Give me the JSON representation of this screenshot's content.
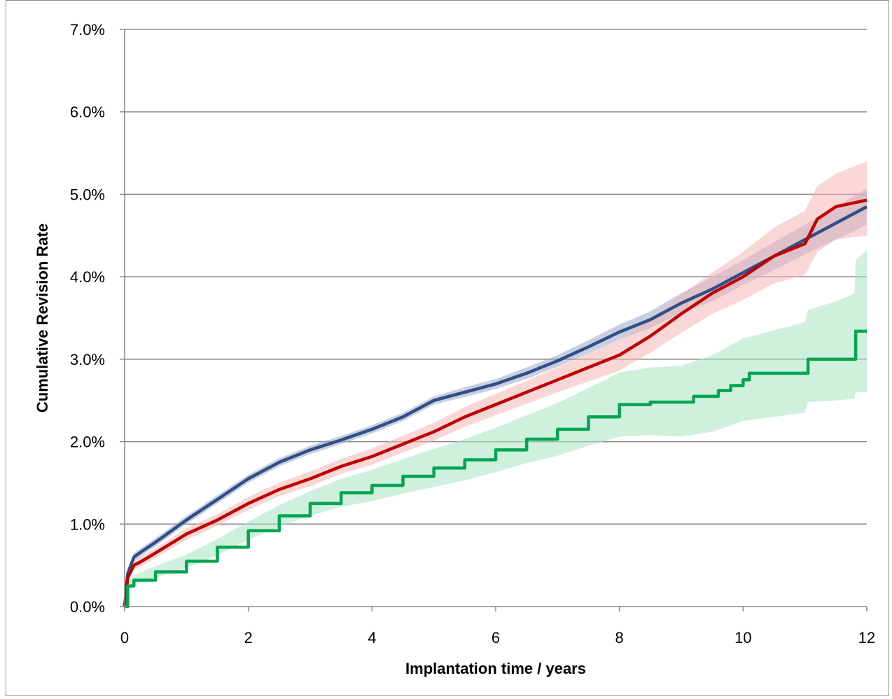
{
  "chart_data": {
    "type": "line",
    "title": "",
    "xlabel": "Implantation time  / years",
    "ylabel": "Cumulative Revision Rate",
    "xlim": [
      0,
      12
    ],
    "ylim": [
      0,
      7
    ],
    "x_ticks": [
      "0",
      "2",
      "4",
      "6",
      "8",
      "10",
      "12"
    ],
    "y_ticks": [
      "0.0%",
      "1.0%",
      "2.0%",
      "3.0%",
      "4.0%",
      "5.0%",
      "6.0%",
      "7.0%"
    ],
    "grid": true,
    "legend": "none",
    "series": [
      {
        "color": "#2e4f87",
        "band_color": "#9aa8c8",
        "points": [
          [
            0,
            0
          ],
          [
            0.05,
            0.4
          ],
          [
            0.15,
            0.6
          ],
          [
            0.3,
            0.68
          ],
          [
            0.5,
            0.78
          ],
          [
            1,
            1.05
          ],
          [
            1.5,
            1.3
          ],
          [
            2,
            1.55
          ],
          [
            2.5,
            1.75
          ],
          [
            3,
            1.9
          ],
          [
            3.5,
            2.02
          ],
          [
            4,
            2.15
          ],
          [
            4.5,
            2.3
          ],
          [
            5,
            2.5
          ],
          [
            5.5,
            2.6
          ],
          [
            6,
            2.7
          ],
          [
            6.5,
            2.83
          ],
          [
            7,
            2.98
          ],
          [
            7.5,
            3.15
          ],
          [
            8,
            3.33
          ],
          [
            8.5,
            3.48
          ],
          [
            9,
            3.68
          ],
          [
            9.5,
            3.85
          ],
          [
            10,
            4.05
          ],
          [
            10.5,
            4.25
          ],
          [
            11,
            4.45
          ],
          [
            11.5,
            4.65
          ],
          [
            12,
            4.85
          ]
        ],
        "ci_upper": [
          [
            0,
            0
          ],
          [
            0.05,
            0.45
          ],
          [
            0.15,
            0.65
          ],
          [
            0.3,
            0.73
          ],
          [
            0.5,
            0.83
          ],
          [
            1,
            1.1
          ],
          [
            1.5,
            1.35
          ],
          [
            2,
            1.6
          ],
          [
            2.5,
            1.8
          ],
          [
            3,
            1.95
          ],
          [
            3.5,
            2.07
          ],
          [
            4,
            2.2
          ],
          [
            4.5,
            2.35
          ],
          [
            5,
            2.55
          ],
          [
            5.5,
            2.66
          ],
          [
            6,
            2.76
          ],
          [
            6.5,
            2.9
          ],
          [
            7,
            3.05
          ],
          [
            7.5,
            3.23
          ],
          [
            8,
            3.42
          ],
          [
            8.5,
            3.58
          ],
          [
            9,
            3.8
          ],
          [
            9.5,
            4.0
          ],
          [
            10,
            4.2
          ],
          [
            10.5,
            4.42
          ],
          [
            11,
            4.63
          ],
          [
            11.5,
            4.85
          ],
          [
            12,
            5.07
          ]
        ],
        "ci_lower": [
          [
            0,
            0
          ],
          [
            0.05,
            0.35
          ],
          [
            0.15,
            0.55
          ],
          [
            0.3,
            0.63
          ],
          [
            0.5,
            0.73
          ],
          [
            1,
            1.0
          ],
          [
            1.5,
            1.25
          ],
          [
            2,
            1.5
          ],
          [
            2.5,
            1.7
          ],
          [
            3,
            1.85
          ],
          [
            3.5,
            1.97
          ],
          [
            4,
            2.1
          ],
          [
            4.5,
            2.25
          ],
          [
            5,
            2.45
          ],
          [
            5.5,
            2.54
          ],
          [
            6,
            2.64
          ],
          [
            6.5,
            2.76
          ],
          [
            7,
            2.91
          ],
          [
            7.5,
            3.07
          ],
          [
            8,
            3.24
          ],
          [
            8.5,
            3.38
          ],
          [
            9,
            3.56
          ],
          [
            9.5,
            3.7
          ],
          [
            10,
            3.9
          ],
          [
            10.5,
            4.08
          ],
          [
            11,
            4.27
          ],
          [
            11.5,
            4.45
          ],
          [
            12,
            4.63
          ]
        ]
      },
      {
        "color": "#c00000",
        "band_color": "#f4b6b6",
        "points": [
          [
            0,
            0
          ],
          [
            0.05,
            0.35
          ],
          [
            0.15,
            0.5
          ],
          [
            0.3,
            0.56
          ],
          [
            0.5,
            0.65
          ],
          [
            1,
            0.88
          ],
          [
            1.5,
            1.05
          ],
          [
            2,
            1.25
          ],
          [
            2.5,
            1.42
          ],
          [
            3,
            1.55
          ],
          [
            3.5,
            1.7
          ],
          [
            4,
            1.82
          ],
          [
            4.5,
            1.97
          ],
          [
            5,
            2.12
          ],
          [
            5.5,
            2.3
          ],
          [
            6,
            2.45
          ],
          [
            6.5,
            2.6
          ],
          [
            7,
            2.75
          ],
          [
            7.5,
            2.9
          ],
          [
            8,
            3.05
          ],
          [
            8.5,
            3.28
          ],
          [
            9,
            3.55
          ],
          [
            9.5,
            3.8
          ],
          [
            10,
            4.0
          ],
          [
            10.5,
            4.25
          ],
          [
            11,
            4.4
          ],
          [
            11.2,
            4.7
          ],
          [
            11.5,
            4.85
          ],
          [
            12,
            4.93
          ]
        ],
        "ci_upper": [
          [
            0,
            0
          ],
          [
            0.05,
            0.4
          ],
          [
            0.15,
            0.56
          ],
          [
            0.3,
            0.62
          ],
          [
            0.5,
            0.71
          ],
          [
            1,
            0.95
          ],
          [
            1.5,
            1.12
          ],
          [
            2,
            1.33
          ],
          [
            2.5,
            1.5
          ],
          [
            3,
            1.64
          ],
          [
            3.5,
            1.79
          ],
          [
            4,
            1.92
          ],
          [
            4.5,
            2.07
          ],
          [
            5,
            2.23
          ],
          [
            5.5,
            2.42
          ],
          [
            6,
            2.58
          ],
          [
            6.5,
            2.74
          ],
          [
            7,
            2.9
          ],
          [
            7.5,
            3.07
          ],
          [
            8,
            3.24
          ],
          [
            8.5,
            3.48
          ],
          [
            9,
            3.78
          ],
          [
            9.5,
            4.05
          ],
          [
            10,
            4.3
          ],
          [
            10.5,
            4.6
          ],
          [
            11,
            4.8
          ],
          [
            11.2,
            5.1
          ],
          [
            11.5,
            5.25
          ],
          [
            12,
            5.4
          ]
        ],
        "ci_lower": [
          [
            0,
            0
          ],
          [
            0.05,
            0.3
          ],
          [
            0.15,
            0.44
          ],
          [
            0.3,
            0.5
          ],
          [
            0.5,
            0.59
          ],
          [
            1,
            0.81
          ],
          [
            1.5,
            0.98
          ],
          [
            2,
            1.17
          ],
          [
            2.5,
            1.34
          ],
          [
            3,
            1.46
          ],
          [
            3.5,
            1.61
          ],
          [
            4,
            1.72
          ],
          [
            4.5,
            1.87
          ],
          [
            5,
            2.01
          ],
          [
            5.5,
            2.18
          ],
          [
            6,
            2.32
          ],
          [
            6.5,
            2.46
          ],
          [
            7,
            2.6
          ],
          [
            7.5,
            2.73
          ],
          [
            8,
            2.86
          ],
          [
            8.5,
            3.08
          ],
          [
            9,
            3.32
          ],
          [
            9.5,
            3.55
          ],
          [
            10,
            3.72
          ],
          [
            10.5,
            3.92
          ],
          [
            11,
            4.02
          ],
          [
            11.2,
            4.3
          ],
          [
            11.5,
            4.45
          ],
          [
            12,
            4.5
          ]
        ]
      },
      {
        "color": "#00a550",
        "band_color": "#a9e4c2",
        "steps": true,
        "points": [
          [
            0,
            0
          ],
          [
            0.05,
            0.25
          ],
          [
            0.15,
            0.32
          ],
          [
            0.5,
            0.42
          ],
          [
            1,
            0.55
          ],
          [
            1.5,
            0.72
          ],
          [
            2,
            0.92
          ],
          [
            2.5,
            1.1
          ],
          [
            3,
            1.25
          ],
          [
            3.5,
            1.38
          ],
          [
            4,
            1.47
          ],
          [
            4.5,
            1.58
          ],
          [
            5,
            1.68
          ],
          [
            5.5,
            1.78
          ],
          [
            6,
            1.9
          ],
          [
            6.5,
            2.03
          ],
          [
            7,
            2.15
          ],
          [
            7.5,
            2.3
          ],
          [
            8,
            2.45
          ],
          [
            8.5,
            2.48
          ],
          [
            9,
            2.48
          ],
          [
            9.2,
            2.55
          ],
          [
            9.6,
            2.62
          ],
          [
            9.8,
            2.68
          ],
          [
            10,
            2.75
          ],
          [
            10.1,
            2.83
          ],
          [
            11,
            2.83
          ],
          [
            11.05,
            3.0
          ],
          [
            11.8,
            3.0
          ],
          [
            11.82,
            3.34
          ],
          [
            12,
            3.34
          ]
        ],
        "ci_upper": [
          [
            0,
            0
          ],
          [
            0.05,
            0.3
          ],
          [
            0.15,
            0.38
          ],
          [
            0.5,
            0.49
          ],
          [
            1,
            0.63
          ],
          [
            1.5,
            0.82
          ],
          [
            2,
            1.03
          ],
          [
            2.5,
            1.23
          ],
          [
            3,
            1.4
          ],
          [
            3.5,
            1.55
          ],
          [
            4,
            1.66
          ],
          [
            4.5,
            1.79
          ],
          [
            5,
            1.91
          ],
          [
            5.5,
            2.03
          ],
          [
            6,
            2.17
          ],
          [
            6.5,
            2.32
          ],
          [
            7,
            2.47
          ],
          [
            7.5,
            2.65
          ],
          [
            8,
            2.84
          ],
          [
            8.5,
            2.9
          ],
          [
            9,
            2.92
          ],
          [
            9.5,
            3.05
          ],
          [
            10,
            3.25
          ],
          [
            10.5,
            3.35
          ],
          [
            11,
            3.45
          ],
          [
            11.05,
            3.6
          ],
          [
            11.5,
            3.7
          ],
          [
            11.8,
            3.8
          ],
          [
            11.82,
            4.2
          ],
          [
            12,
            4.32
          ]
        ],
        "ci_lower": [
          [
            0,
            0
          ],
          [
            0.05,
            0.2
          ],
          [
            0.15,
            0.26
          ],
          [
            0.5,
            0.35
          ],
          [
            1,
            0.47
          ],
          [
            1.5,
            0.62
          ],
          [
            2,
            0.81
          ],
          [
            2.5,
            0.97
          ],
          [
            3,
            1.1
          ],
          [
            3.5,
            1.21
          ],
          [
            4,
            1.28
          ],
          [
            4.5,
            1.37
          ],
          [
            5,
            1.45
          ],
          [
            5.5,
            1.53
          ],
          [
            6,
            1.63
          ],
          [
            6.5,
            1.74
          ],
          [
            7,
            1.83
          ],
          [
            7.5,
            1.95
          ],
          [
            8,
            2.06
          ],
          [
            8.5,
            2.08
          ],
          [
            9,
            2.06
          ],
          [
            9.5,
            2.12
          ],
          [
            10,
            2.25
          ],
          [
            10.5,
            2.3
          ],
          [
            11,
            2.35
          ],
          [
            11.05,
            2.48
          ],
          [
            11.5,
            2.5
          ],
          [
            11.8,
            2.52
          ],
          [
            11.82,
            2.6
          ],
          [
            12,
            2.6
          ]
        ]
      }
    ]
  }
}
